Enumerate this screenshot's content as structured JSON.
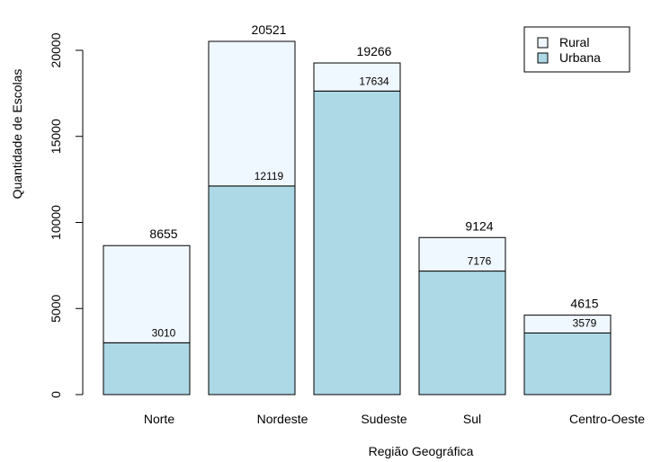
{
  "chart_data": {
    "type": "bar",
    "stacked": true,
    "title": "",
    "xlabel": "Região Geográfica",
    "ylabel": "Quantidade de Escolas",
    "ylim": [
      0,
      20521
    ],
    "yticks": [
      0,
      5000,
      10000,
      15000,
      20000
    ],
    "categories": [
      "Norte",
      "Nordeste",
      "Sudeste",
      "Sul",
      "Centro-Oeste"
    ],
    "series": [
      {
        "name": "Urbana",
        "values": [
          3010,
          12119,
          17634,
          7176,
          3579
        ],
        "color": "#add8e6"
      },
      {
        "name": "Rural",
        "values": [
          5645,
          8402,
          1632,
          1948,
          1036
        ],
        "color": "#f0f8ff"
      }
    ],
    "totals": [
      8655,
      20521,
      19266,
      9124,
      4615
    ],
    "legend": {
      "position": "top-right",
      "entries": [
        "Rural",
        "Urbana"
      ]
    },
    "grid": false
  }
}
